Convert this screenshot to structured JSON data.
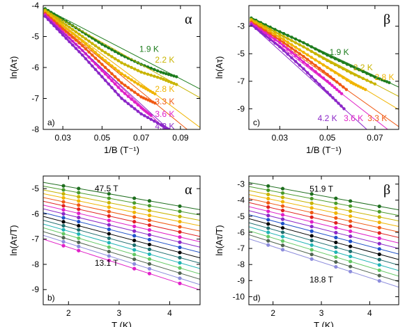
{
  "chart_data": [
    {
      "id": "a",
      "type": "scatter",
      "panel_label": "a)",
      "greek": "α",
      "xlabel": "1/B (T⁻¹)",
      "ylabel": "ln(Aτ)",
      "xlim": [
        0.02,
        0.1
      ],
      "ylim": [
        -8,
        -4
      ],
      "xticks": [
        0.03,
        0.05,
        0.07,
        0.09
      ],
      "yticks": [
        -4,
        -5,
        -6,
        -7,
        -8
      ],
      "xtick_labels": [
        "0.03",
        "0.05",
        "0.07",
        "0.09"
      ],
      "ytick_labels": [
        "-4",
        "-5",
        "-6",
        "-7",
        "-8"
      ],
      "series": [
        {
          "name": "1.9 K",
          "color": "#1e7d1e",
          "x": [
            0.021,
            0.03,
            0.04,
            0.05,
            0.06,
            0.07,
            0.08,
            0.088
          ],
          "y": [
            -4.1,
            -4.45,
            -4.85,
            -5.25,
            -5.6,
            -5.9,
            -6.15,
            -6.3
          ]
        },
        {
          "name": "2.2 K",
          "color": "#c8b400",
          "x": [
            0.021,
            0.03,
            0.04,
            0.05,
            0.06,
            0.07,
            0.08,
            0.088
          ],
          "y": [
            -4.15,
            -4.55,
            -5.0,
            -5.45,
            -5.85,
            -6.15,
            -6.35,
            -6.55
          ]
        },
        {
          "name": "2.8 K",
          "color": "#f0b400",
          "x": [
            0.021,
            0.03,
            0.04,
            0.05,
            0.06,
            0.07,
            0.077
          ],
          "y": [
            -4.2,
            -4.65,
            -5.15,
            -5.7,
            -6.2,
            -6.6,
            -6.85
          ]
        },
        {
          "name": "3.3 K",
          "color": "#f05a14",
          "x": [
            0.021,
            0.03,
            0.04,
            0.05,
            0.06,
            0.07,
            0.077
          ],
          "y": [
            -4.25,
            -4.75,
            -5.3,
            -5.9,
            -6.5,
            -6.95,
            -7.15
          ]
        },
        {
          "name": "3.6 K",
          "color": "#e020c8",
          "x": [
            0.021,
            0.03,
            0.04,
            0.05,
            0.06,
            0.07,
            0.075
          ],
          "y": [
            -4.3,
            -4.85,
            -5.45,
            -6.1,
            -6.75,
            -7.3,
            -7.55
          ]
        },
        {
          "name": "4.2 K",
          "color": "#8c28c8",
          "x": [
            0.021,
            0.03,
            0.04,
            0.05,
            0.06,
            0.07,
            0.08,
            0.084
          ],
          "y": [
            -4.35,
            -4.95,
            -5.6,
            -6.3,
            -7.0,
            -7.5,
            -7.85,
            -8.0
          ]
        }
      ],
      "labels": [
        {
          "text": "1.9 K",
          "color": "#1e7d1e",
          "x": 0.074,
          "y": -5.4
        },
        {
          "text": "2.2 K",
          "color": "#c8b400",
          "x": 0.082,
          "y": -5.75
        },
        {
          "text": "2.8 K",
          "color": "#f0b400",
          "x": 0.082,
          "y": -6.7
        },
        {
          "text": "3.3 K",
          "color": "#f05a14",
          "x": 0.082,
          "y": -7.1
        },
        {
          "text": "3.6 K",
          "color": "#e020c8",
          "x": 0.082,
          "y": -7.5
        },
        {
          "text": "4.2 K",
          "color": "#8c28c8",
          "x": 0.082,
          "y": -7.9
        }
      ]
    },
    {
      "id": "c",
      "type": "scatter",
      "panel_label": "c)",
      "greek": "β",
      "xlabel": "1/B (T⁻¹)",
      "ylabel": "ln(Aτ)",
      "xlim": [
        0.017,
        0.08
      ],
      "ylim": [
        -10.5,
        -1.5
      ],
      "xticks": [
        0.03,
        0.05,
        0.07
      ],
      "yticks": [
        -3,
        -5,
        -7,
        -9
      ],
      "xtick_labels": [
        "0.03",
        "0.05",
        "0.07"
      ],
      "ytick_labels": [
        "-3",
        "-5",
        "-7",
        "-9"
      ],
      "series": [
        {
          "name": "1.9 K",
          "color": "#1e7d1e",
          "x": [
            0.018,
            0.03,
            0.04,
            0.05,
            0.06,
            0.07,
            0.076
          ],
          "y": [
            -2.4,
            -3.4,
            -4.2,
            -5.1,
            -5.9,
            -6.7,
            -7.1
          ]
        },
        {
          "name": "2.2 K",
          "color": "#c8b400",
          "x": [
            0.018,
            0.03,
            0.04,
            0.05,
            0.06,
            0.07
          ],
          "y": [
            -2.5,
            -3.6,
            -4.5,
            -5.5,
            -6.4,
            -7.2
          ]
        },
        {
          "name": "2.8 K",
          "color": "#f0b400",
          "x": [
            0.018,
            0.03,
            0.04,
            0.05,
            0.06,
            0.066
          ],
          "y": [
            -2.6,
            -3.8,
            -4.9,
            -6.0,
            -7.1,
            -7.6
          ]
        },
        {
          "name": "3.3 K",
          "color": "#f05a14",
          "x": [
            0.018,
            0.03,
            0.04,
            0.05,
            0.058
          ],
          "y": [
            -2.7,
            -4.0,
            -5.2,
            -6.5,
            -7.6
          ]
        },
        {
          "name": "3.6 K",
          "color": "#e020c8",
          "x": [
            0.018,
            0.03,
            0.04,
            0.05,
            0.056
          ],
          "y": [
            -2.8,
            -4.2,
            -5.6,
            -7.0,
            -7.9
          ]
        },
        {
          "name": "4.2 K",
          "color": "#8c28c8",
          "x": [
            0.018,
            0.03,
            0.04,
            0.05,
            0.057
          ],
          "y": [
            -2.9,
            -4.5,
            -6.1,
            -7.8,
            -9.0
          ]
        }
      ],
      "labels": [
        {
          "text": "1.9 K",
          "color": "#1e7d1e",
          "x": 0.055,
          "y": -4.9
        },
        {
          "text": "2.2 K",
          "color": "#c8b400",
          "x": 0.065,
          "y": -6.0
        },
        {
          "text": "2.8 K",
          "color": "#f0b400",
          "x": 0.074,
          "y": -6.7
        },
        {
          "text": "4.2 K",
          "color": "#8c28c8",
          "x": 0.05,
          "y": -9.7
        },
        {
          "text": "3.6 K",
          "color": "#e020c8",
          "x": 0.061,
          "y": -9.7
        },
        {
          "text": "3.3 K",
          "color": "#f05a14",
          "x": 0.071,
          "y": -9.7
        }
      ]
    },
    {
      "id": "b",
      "type": "scatter",
      "panel_label": "b)",
      "greek": "α",
      "xlabel": "T (K)",
      "ylabel": "ln(Aτ/T)",
      "xlim": [
        1.5,
        4.6
      ],
      "ylim": [
        -9.6,
        -4.5
      ],
      "xticks": [
        2,
        3,
        4
      ],
      "yticks": [
        -5,
        -6,
        -7,
        -8,
        -9
      ],
      "xtick_labels": [
        "2",
        "3",
        "4"
      ],
      "ytick_labels": [
        "-5",
        "-6",
        "-7",
        "-8",
        "-9"
      ],
      "temperatures": [
        1.9,
        2.2,
        2.8,
        3.3,
        3.6,
        4.2
      ],
      "series": [
        {
          "name": "47.5 T",
          "color": "#1e6e1e",
          "y0": -4.75,
          "slope": -0.35
        },
        {
          "name": "",
          "color": "#4a9a2a",
          "y0": -4.9,
          "slope": -0.37
        },
        {
          "name": "",
          "color": "#c8b400",
          "y0": -5.05,
          "slope": -0.39
        },
        {
          "name": "",
          "color": "#f0b400",
          "y0": -5.2,
          "slope": -0.41
        },
        {
          "name": "",
          "color": "#f05a14",
          "y0": -5.35,
          "slope": -0.43
        },
        {
          "name": "",
          "color": "#e02020",
          "y0": -5.5,
          "slope": -0.45
        },
        {
          "name": "",
          "color": "#e020c8",
          "y0": -5.65,
          "slope": -0.47
        },
        {
          "name": "",
          "color": "#8c28c8",
          "y0": -5.8,
          "slope": -0.49
        },
        {
          "name": "",
          "color": "#1e50c8",
          "y0": -5.95,
          "slope": -0.51
        },
        {
          "name": "",
          "color": "#000000",
          "y0": -6.1,
          "slope": -0.53
        },
        {
          "name": "",
          "color": "#1e6e6e",
          "y0": -6.25,
          "slope": -0.55
        },
        {
          "name": "",
          "color": "#20b4b4",
          "y0": -6.4,
          "slope": -0.57
        },
        {
          "name": "",
          "color": "#64c864",
          "y0": -6.55,
          "slope": -0.59
        },
        {
          "name": "",
          "color": "#506450",
          "y0": -6.7,
          "slope": -0.61
        },
        {
          "name": "",
          "color": "#8c8cdc",
          "y0": -6.85,
          "slope": -0.63
        },
        {
          "name": "13.1 T",
          "color": "#e020c8",
          "y0": -7.0,
          "slope": -0.65
        }
      ],
      "labels": [
        {
          "text": "47.5 T",
          "color": "#000000",
          "x": 2.75,
          "y": -5.0
        },
        {
          "text": "13.1 T",
          "color": "#000000",
          "x": 2.75,
          "y": -7.95
        }
      ]
    },
    {
      "id": "d",
      "type": "scatter",
      "panel_label": "d)",
      "greek": "β",
      "xlabel": "T (K)",
      "ylabel": "ln(Aτ/T)",
      "xlim": [
        1.5,
        4.6
      ],
      "ylim": [
        -10.5,
        -2.5
      ],
      "xticks": [
        2,
        3,
        4
      ],
      "yticks": [
        -3,
        -4,
        -5,
        -6,
        -7,
        -8,
        -9,
        -10
      ],
      "xtick_labels": [
        "2",
        "3",
        "4"
      ],
      "ytick_labels": [
        "-3",
        "-4",
        "-5",
        "-6",
        "-7",
        "-8",
        "-9",
        "-10"
      ],
      "temperatures": [
        1.9,
        2.2,
        2.8,
        3.3,
        3.6,
        4.2
      ],
      "series": [
        {
          "name": "51.9 T",
          "color": "#1e6e1e",
          "y0": -2.9,
          "slope": -0.55
        },
        {
          "name": "",
          "color": "#4a9a2a",
          "y0": -3.15,
          "slope": -0.58
        },
        {
          "name": "",
          "color": "#c8b400",
          "y0": -3.4,
          "slope": -0.61
        },
        {
          "name": "",
          "color": "#f0b400",
          "y0": -3.65,
          "slope": -0.64
        },
        {
          "name": "",
          "color": "#f05a14",
          "y0": -3.9,
          "slope": -0.67
        },
        {
          "name": "",
          "color": "#e02020",
          "y0": -4.15,
          "slope": -0.7
        },
        {
          "name": "",
          "color": "#e020c8",
          "y0": -4.4,
          "slope": -0.73
        },
        {
          "name": "",
          "color": "#8c28c8",
          "y0": -4.65,
          "slope": -0.76
        },
        {
          "name": "",
          "color": "#1e50c8",
          "y0": -4.9,
          "slope": -0.79
        },
        {
          "name": "",
          "color": "#000000",
          "y0": -5.15,
          "slope": -0.82
        },
        {
          "name": "",
          "color": "#1e6e6e",
          "y0": -5.4,
          "slope": -0.85
        },
        {
          "name": "",
          "color": "#20b4b4",
          "y0": -5.65,
          "slope": -0.88
        },
        {
          "name": "",
          "color": "#64c864",
          "y0": -5.9,
          "slope": -0.91
        },
        {
          "name": "",
          "color": "#506450",
          "y0": -6.15,
          "slope": -0.94
        },
        {
          "name": "18.8 T",
          "color": "#8c8cdc",
          "y0": -6.4,
          "slope": -0.97
        }
      ],
      "labels": [
        {
          "text": "51.9 T",
          "color": "#000000",
          "x": 3.0,
          "y": -3.3
        },
        {
          "text": "18.8 T",
          "color": "#000000",
          "x": 3.0,
          "y": -8.95
        }
      ]
    }
  ]
}
